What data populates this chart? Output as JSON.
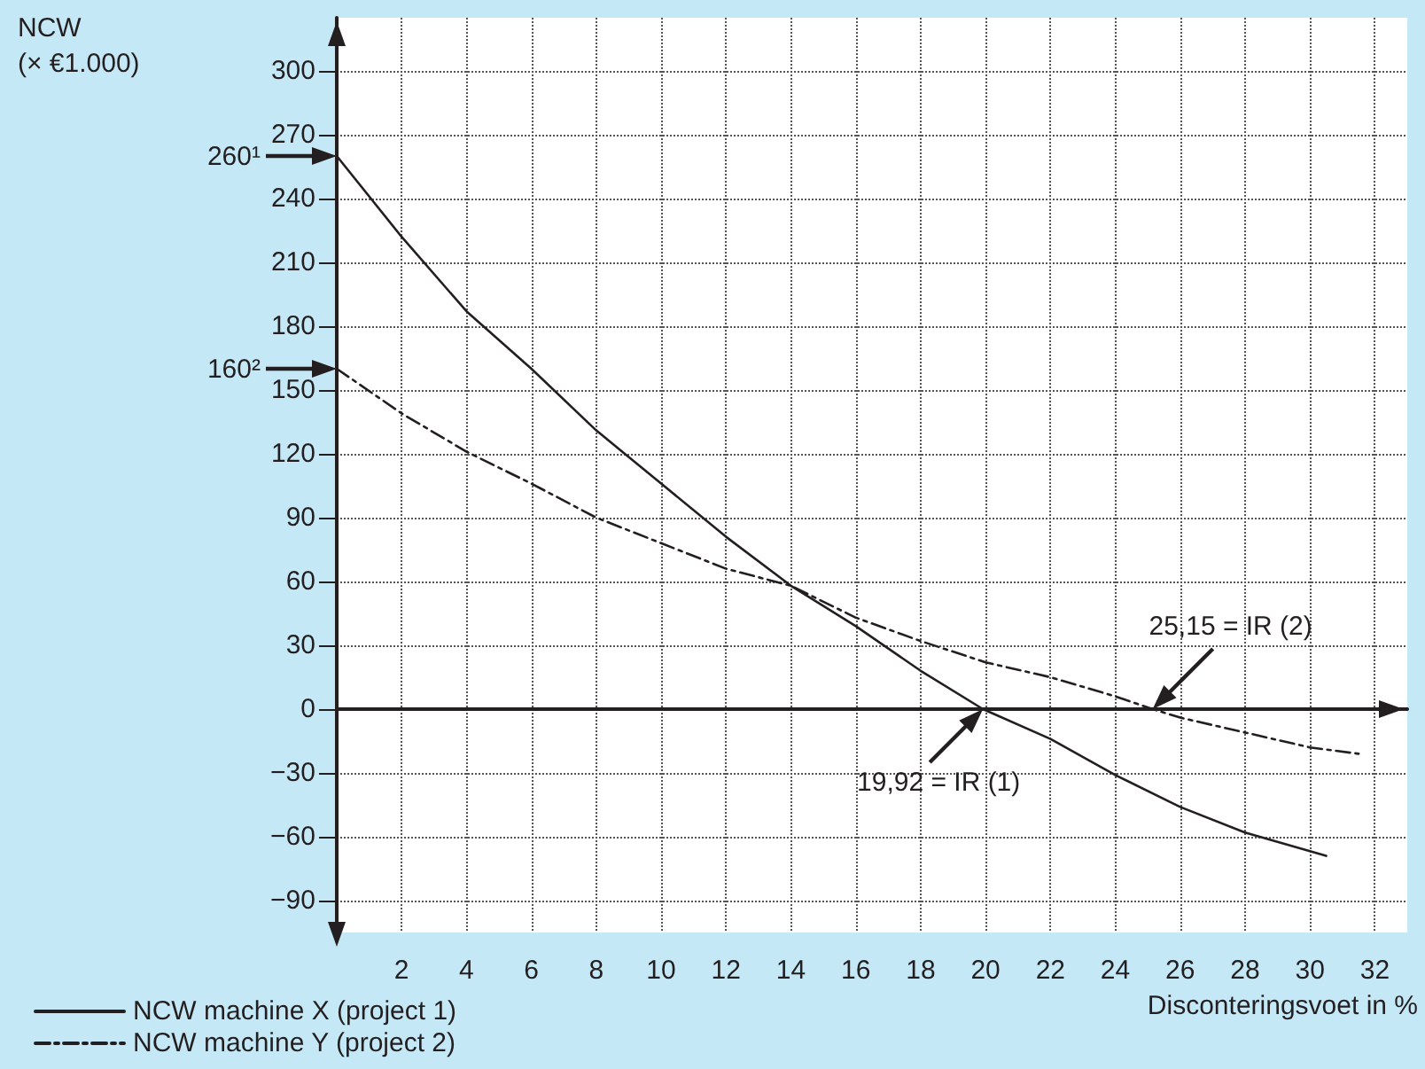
{
  "chart_data": {
    "type": "line",
    "xlabel": "Disconteringsvoet in %",
    "ylabel": "NCW\n(× €1.000)",
    "xlim": [
      0,
      33
    ],
    "xticks": [
      2,
      4,
      6,
      8,
      10,
      12,
      14,
      16,
      18,
      20,
      22,
      24,
      26,
      28,
      30,
      32
    ],
    "ylim": [
      -105,
      325
    ],
    "yticks": [
      -90,
      -60,
      -30,
      0,
      30,
      60,
      90,
      120,
      150,
      180,
      210,
      240,
      270,
      300
    ],
    "grid": true,
    "legend": "bottom left",
    "marker": "none",
    "series": [
      {
        "name": "NCW machine X (project 1)",
        "color": "#231f20",
        "line_style": "solid",
        "x": [
          0,
          2,
          4,
          6,
          8,
          10,
          12,
          14,
          16,
          18,
          19.92,
          22,
          24,
          26,
          28,
          30.5
        ],
        "values": [
          260,
          222,
          187,
          160,
          131,
          106,
          81,
          58,
          39,
          18,
          0,
          -14,
          -31,
          -46,
          -58,
          -69
        ]
      },
      {
        "name": "NCW machine Y (project 2)",
        "color": "#231f20",
        "line_style": "dashed",
        "x": [
          0,
          2,
          4,
          6,
          8,
          10,
          12,
          14,
          16,
          18,
          20,
          22,
          24,
          25.15,
          26,
          28,
          30,
          31.5
        ],
        "values": [
          160,
          139,
          121,
          106,
          90,
          78,
          66,
          58,
          43,
          32,
          22,
          15,
          6,
          0,
          -4,
          -11,
          -18,
          -21
        ]
      }
    ],
    "annotations": [
      {
        "text": "260¹",
        "x": 0,
        "y": 260
      },
      {
        "text": "160²",
        "x": 0,
        "y": 160
      },
      {
        "text": "19,92 = IR (1)",
        "x": 19.92,
        "y": 0
      },
      {
        "text": "25,15 = IR (2)",
        "x": 25.15,
        "y": 0
      }
    ]
  }
}
